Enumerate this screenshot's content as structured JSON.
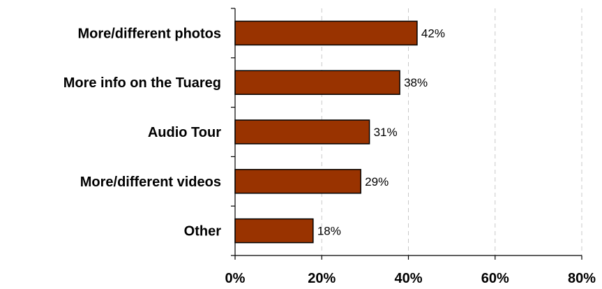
{
  "chart_data": {
    "type": "bar",
    "orientation": "horizontal",
    "categories": [
      "More/different photos",
      "More info on the Tuareg",
      "Audio Tour",
      "More/different videos",
      "Other"
    ],
    "values": [
      42,
      38,
      31,
      29,
      18
    ],
    "data_labels": [
      "42%",
      "38%",
      "31%",
      "29%",
      "18%"
    ],
    "xticks": [
      0,
      20,
      40,
      60,
      80
    ],
    "xtick_labels": [
      "0%",
      "20%",
      "40%",
      "60%",
      "80%"
    ],
    "xlim": [
      0,
      80
    ],
    "grid": "vertical dashed",
    "legend": "none",
    "bar_color": "#993300",
    "title": "",
    "xlabel": "",
    "ylabel": ""
  }
}
